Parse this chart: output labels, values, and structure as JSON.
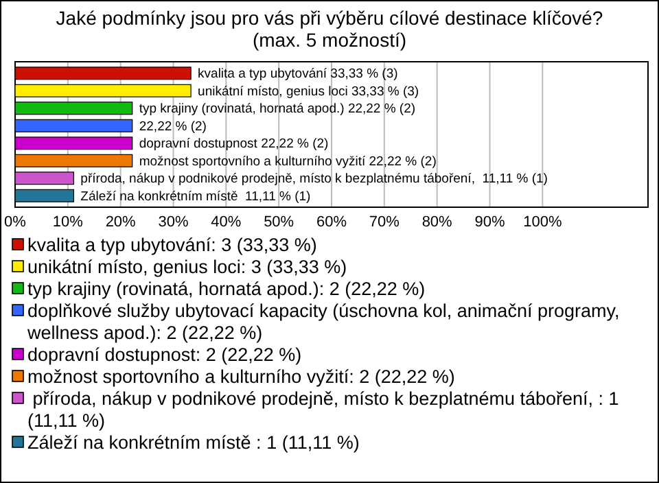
{
  "chart_data": {
    "type": "bar",
    "orientation": "horizontal",
    "stacked": true,
    "title": "Jaké podmínky jsou pro vás při výběru cílové destinace klíčové?\n(max. 5 možností)",
    "categories": [
      null,
      null,
      null,
      null,
      null,
      null,
      null,
      null
    ],
    "series": [
      {
        "name": "kvalita a typ ubytování: 3 (33,33 %)",
        "color": "#cc1100",
        "values": [
          33.33,
          null,
          null,
          null,
          null,
          null,
          null,
          null
        ],
        "value_labels": [
          "kvalita a typ ubytování 33,33 % (3)",
          null,
          null,
          null,
          null,
          null,
          null,
          null
        ]
      },
      {
        "name": "unikátní místo, genius loci: 3 (33,33 %)",
        "color": "#ffee00",
        "values": [
          null,
          33.33,
          null,
          null,
          null,
          null,
          null,
          null
        ],
        "value_labels": [
          null,
          "unikátní místo, genius loci 33,33 % (3)",
          null,
          null,
          null,
          null,
          null,
          null
        ]
      },
      {
        "name": "typ krajiny (rovinatá, hornatá apod.): 2 (22,22 %)",
        "color": "#11bb11",
        "values": [
          null,
          null,
          22.22,
          null,
          null,
          null,
          null,
          null
        ],
        "value_labels": [
          null,
          null,
          "typ krajiny (rovinatá, hornatá apod.) 22,22 % (2)",
          null,
          null,
          null,
          null,
          null
        ]
      },
      {
        "name": "doplňkové služby ubytovací kapacity (úschovna kol, animační programy, wellness apod.): 2 (22,22 %)",
        "color": "#3366ff",
        "values": [
          null,
          null,
          null,
          22.22,
          null,
          null,
          null,
          null
        ],
        "value_labels": [
          null,
          null,
          null,
          "22,22 % (2)",
          null,
          null,
          null,
          null
        ]
      },
      {
        "name": "dopravní dostupnost: 2 (22,22 %)",
        "color": "#cc00cc",
        "values": [
          null,
          null,
          null,
          null,
          22.22,
          null,
          null,
          null
        ],
        "value_labels": [
          null,
          null,
          null,
          null,
          "dopravní dostupnost 22,22 % (2)",
          null,
          null,
          null
        ]
      },
      {
        "name": "možnost sportovního a kulturního vyžití: 2 (22,22 %)",
        "color": "#ee7700",
        "values": [
          null,
          null,
          null,
          null,
          null,
          22.22,
          null,
          null
        ],
        "value_labels": [
          null,
          null,
          null,
          null,
          null,
          "možnost sportovního a kulturního vyžití 22,22 % (2)",
          null,
          null
        ]
      },
      {
        "name": " příroda, nákup v podnikové prodejně, místo k bezplatnému táboření, : 1 (11,11 %)",
        "color": "#cc55cc",
        "values": [
          null,
          null,
          null,
          null,
          null,
          null,
          11.11,
          null
        ],
        "value_labels": [
          null,
          null,
          null,
          null,
          null,
          null,
          "příroda, nákup v podnikové prodejně, místo k bezplatnému táboření,  11,11 % (1)",
          null
        ]
      },
      {
        "name": "Záleží na konkrétním místě : 1 (11,11 %)",
        "color": "#227799",
        "values": [
          null,
          null,
          null,
          null,
          null,
          null,
          null,
          11.11
        ],
        "value_labels": [
          null,
          null,
          null,
          null,
          null,
          null,
          null,
          "Záleží na konkrétním místě  11,11 % (1)"
        ]
      }
    ],
    "xlim": [
      0,
      120
    ],
    "xticks": [
      {
        "value": 0,
        "label": "0%"
      },
      {
        "value": 10,
        "label": "10%"
      },
      {
        "value": 20,
        "label": "20%"
      },
      {
        "value": 30,
        "label": "30%"
      },
      {
        "value": 40,
        "label": "40%"
      },
      {
        "value": 50,
        "label": "50%"
      },
      {
        "value": 60,
        "label": "60%"
      },
      {
        "value": 70,
        "label": "70%"
      },
      {
        "value": 80,
        "label": "80%"
      },
      {
        "value": 90,
        "label": "90%"
      },
      {
        "value": 100,
        "label": "100%"
      },
      {
        "value": 120,
        "label": null
      }
    ],
    "grid": "x",
    "legend": "bottom",
    "tick_labels": "x"
  }
}
